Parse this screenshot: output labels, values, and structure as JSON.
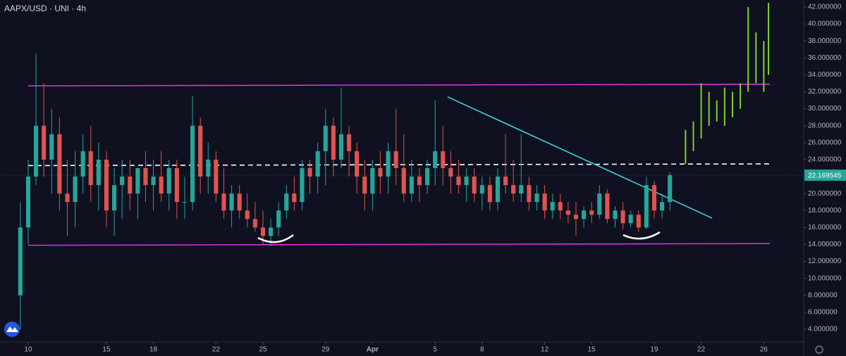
{
  "chart_data": {
    "type": "candlestick",
    "title": "AAPX/USD · UNI · 4h",
    "xlim": [
      -1.8,
      49.55
    ],
    "ylim": [
      2.5,
      42.83
    ],
    "xticks": [
      {
        "value": 0,
        "label": "10"
      },
      {
        "value": 5,
        "label": "15"
      },
      {
        "value": 8,
        "label": "18"
      },
      {
        "value": 12,
        "label": "22"
      },
      {
        "value": 15,
        "label": "25"
      },
      {
        "value": 19,
        "label": "29"
      },
      {
        "value": 22,
        "label": "Apr"
      },
      {
        "value": 26,
        "label": "5"
      },
      {
        "value": 29,
        "label": "8"
      },
      {
        "value": 33,
        "label": "12"
      },
      {
        "value": 36,
        "label": "15"
      },
      {
        "value": 40,
        "label": "19"
      },
      {
        "value": 43,
        "label": "22"
      },
      {
        "value": 47,
        "label": "26"
      }
    ],
    "yticks": [
      {
        "value": 4,
        "label": "4.000000"
      },
      {
        "value": 6,
        "label": "6.000000"
      },
      {
        "value": 8,
        "label": "8.000000"
      },
      {
        "value": 10,
        "label": "10.000000"
      },
      {
        "value": 12,
        "label": "12.000000"
      },
      {
        "value": 14,
        "label": "14.000000"
      },
      {
        "value": 16,
        "label": "16.000000"
      },
      {
        "value": 18,
        "label": "18.000000"
      },
      {
        "value": 20,
        "label": "20.000000"
      },
      {
        "value": 22,
        "label": "22.000000"
      },
      {
        "value": 24,
        "label": "24.000000"
      },
      {
        "value": 26,
        "label": "26.000000"
      },
      {
        "value": 28,
        "label": "28.000000"
      },
      {
        "value": 30,
        "label": "30.000000"
      },
      {
        "value": 32,
        "label": "32.000000"
      },
      {
        "value": 34,
        "label": "34.000000"
      },
      {
        "value": 36,
        "label": "36.000000"
      },
      {
        "value": 38,
        "label": "38.000000"
      },
      {
        "value": 40,
        "label": "40.000000"
      },
      {
        "value": 42,
        "label": "42.000000"
      }
    ],
    "up_color": "#26a69a",
    "down_color": "#e0544f",
    "candles": {
      "x": [
        -0.5,
        0,
        0.5,
        1,
        1.5,
        2,
        2.5,
        3,
        3.5,
        4,
        4.5,
        5,
        5.5,
        6,
        6.5,
        7,
        7.5,
        8,
        8.5,
        9,
        9.5,
        10,
        10.5,
        11,
        11.5,
        12,
        12.5,
        13,
        13.5,
        14,
        14.5,
        15,
        15.5,
        16,
        16.5,
        17,
        17.5,
        18,
        18.5,
        19,
        19.5,
        20,
        20.5,
        21,
        21.5,
        22,
        22.5,
        23,
        23.5,
        24,
        24.5,
        25,
        25.5,
        26,
        26.5,
        27,
        27.5,
        28,
        28.5,
        29,
        29.5,
        30,
        30.5,
        31,
        31.5,
        32,
        32.5,
        33,
        33.5,
        34,
        34.5,
        35,
        35.5,
        36,
        36.5,
        37,
        37.5,
        38,
        38.5,
        39,
        39.5,
        40,
        40.5,
        41
      ],
      "open": [
        8,
        16,
        22,
        28,
        24,
        27,
        20,
        19,
        22,
        25,
        21,
        24,
        18,
        21,
        22,
        20,
        23,
        21,
        22,
        20,
        23,
        19,
        19,
        28,
        22,
        24,
        20,
        18,
        20,
        18,
        17,
        16,
        15,
        16,
        18,
        20,
        19,
        23,
        22,
        25,
        28,
        24,
        27,
        25,
        22,
        20,
        23,
        22,
        25,
        23,
        20,
        22,
        21,
        23,
        25,
        23,
        22,
        21,
        22,
        20,
        21,
        19,
        22,
        21,
        20,
        21,
        19,
        20,
        18,
        19,
        18,
        17.5,
        17,
        18,
        17.5,
        20,
        17,
        18,
        16.5,
        17.5,
        16,
        21,
        18,
        19
      ],
      "high": [
        19,
        24,
        36.5,
        33,
        30,
        29,
        24,
        25,
        27,
        28,
        26,
        25,
        23,
        24,
        24,
        23,
        25,
        24,
        25,
        24,
        24,
        22,
        31.5,
        29,
        26,
        25,
        23,
        21,
        21,
        20,
        19,
        18,
        17,
        19,
        21,
        22,
        24,
        24,
        26,
        30,
        29,
        32.5,
        28,
        26,
        24,
        24,
        25,
        26,
        30,
        27,
        24,
        23,
        24,
        31,
        28,
        25,
        24,
        23,
        23,
        22,
        22,
        23,
        27,
        24,
        27,
        22,
        21,
        21,
        20,
        20,
        19,
        19,
        18.5,
        19,
        21,
        20.5,
        18.5,
        19,
        18,
        18,
        22,
        21.5,
        20,
        22.5
      ],
      "low": [
        4,
        14,
        21,
        22,
        20,
        18,
        15,
        16,
        20,
        19,
        18,
        16,
        15,
        17,
        18,
        17,
        19,
        18,
        19,
        18,
        17,
        17,
        18,
        20,
        20,
        19,
        17,
        16,
        17,
        16,
        15.5,
        14,
        13.8,
        15,
        17,
        18,
        18,
        20,
        20,
        21,
        22,
        23,
        22,
        20,
        18,
        18,
        20,
        20,
        21,
        19,
        19,
        19,
        20,
        21,
        21,
        20,
        20,
        19,
        19,
        18,
        18,
        18,
        20,
        19,
        19,
        18,
        18,
        17,
        17,
        17,
        16.5,
        15,
        16,
        16.5,
        17,
        16.5,
        16,
        15.8,
        16,
        15.5,
        15.8,
        17,
        17,
        18
      ],
      "close": [
        16,
        22,
        28,
        24,
        27,
        20,
        19,
        22,
        25,
        21,
        24,
        18,
        21,
        22,
        20,
        23,
        21,
        22,
        20,
        23,
        19,
        19,
        28,
        22,
        24,
        20,
        18,
        20,
        18,
        17,
        16,
        15,
        16,
        18,
        20,
        19,
        23,
        22,
        25,
        28,
        24,
        27,
        25,
        22,
        20,
        23,
        22,
        25,
        23,
        20,
        22,
        21,
        23,
        25,
        23,
        22,
        21,
        22,
        20,
        21,
        19,
        22,
        21,
        20,
        21,
        19,
        20,
        18,
        19,
        18,
        17.5,
        17,
        18,
        17.5,
        20,
        17,
        18,
        16.5,
        17.5,
        16,
        21,
        18,
        19,
        22.17
      ]
    },
    "projection": {
      "color": "#7ed321",
      "x": [
        42,
        42.5,
        43,
        43.5,
        44,
        44.5,
        45,
        45.5,
        46,
        46.5,
        47,
        47.3
      ],
      "low": [
        23.5,
        25,
        26.5,
        28,
        28.5,
        28,
        29,
        30,
        32,
        33,
        32,
        34
      ],
      "high": [
        27.5,
        28.5,
        33,
        32,
        31,
        32.5,
        32,
        33,
        42,
        39,
        38,
        42.5
      ]
    },
    "lines": [
      {
        "color": "#d633d6",
        "dash": false,
        "x": [
          0,
          47.4
        ],
        "y": [
          32.7,
          32.9
        ]
      },
      {
        "color": "#d633d6",
        "dash": false,
        "x": [
          0,
          47.4
        ],
        "y": [
          13.9,
          14.1
        ]
      },
      {
        "color": "#ffffff",
        "dash": true,
        "x": [
          0,
          47.4
        ],
        "y": [
          23.3,
          23.5
        ]
      },
      {
        "color": "#3fd0dc",
        "dash": false,
        "x": [
          26.8,
          43.7
        ],
        "y": [
          31.4,
          17.1
        ]
      }
    ],
    "last_price": 22.169545
  }
}
